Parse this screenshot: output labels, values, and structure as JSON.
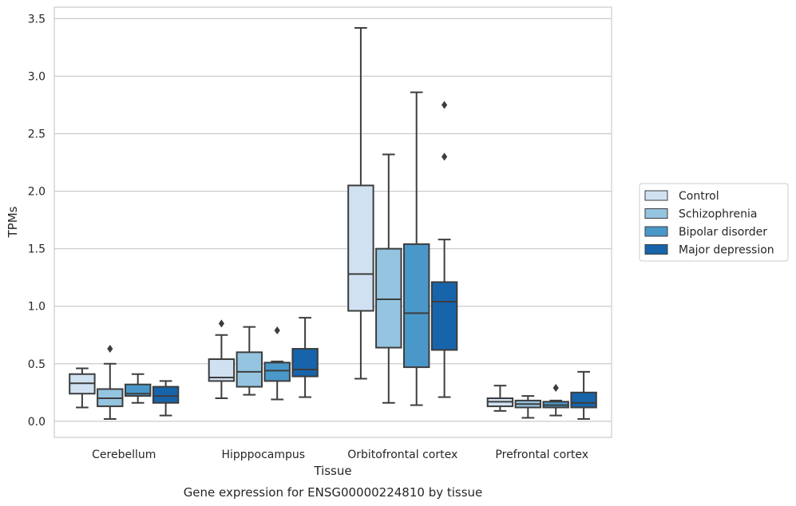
{
  "chart_data": {
    "type": "box",
    "caption": "Gene expression for ENSG00000224810 by tissue",
    "xlabel": "Tissue",
    "ylabel": "TPMs",
    "ylim": [
      -0.14,
      3.6
    ],
    "yticks": [
      0.0,
      0.5,
      1.0,
      1.5,
      2.0,
      2.5,
      3.0,
      3.5
    ],
    "ytick_labels": [
      "0.0",
      "0.5",
      "1.0",
      "1.5",
      "2.0",
      "2.5",
      "3.0",
      "3.5"
    ],
    "grid": "horizontal",
    "legend_position": "right",
    "categories": [
      "Cerebellum",
      "Hipppocampus",
      "Orbitofrontal cortex",
      "Prefrontal cortex"
    ],
    "series": [
      {
        "name": "Control",
        "color": "#d0e1f2",
        "boxes": [
          {
            "whislo": 0.12,
            "q1": 0.24,
            "med": 0.33,
            "q3": 0.41,
            "whishi": 0.46,
            "fliers": []
          },
          {
            "whislo": 0.2,
            "q1": 0.35,
            "med": 0.38,
            "q3": 0.54,
            "whishi": 0.75,
            "fliers": [
              0.85
            ]
          },
          {
            "whislo": 0.37,
            "q1": 0.96,
            "med": 1.28,
            "q3": 2.05,
            "whishi": 3.42,
            "fliers": []
          },
          {
            "whislo": 0.09,
            "q1": 0.13,
            "med": 0.17,
            "q3": 0.2,
            "whishi": 0.31,
            "fliers": []
          }
        ]
      },
      {
        "name": "Schizophrenia",
        "color": "#94c4df",
        "boxes": [
          {
            "whislo": 0.02,
            "q1": 0.13,
            "med": 0.2,
            "q3": 0.28,
            "whishi": 0.5,
            "fliers": [
              0.63
            ]
          },
          {
            "whislo": 0.23,
            "q1": 0.3,
            "med": 0.43,
            "q3": 0.6,
            "whishi": 0.82,
            "fliers": []
          },
          {
            "whislo": 0.16,
            "q1": 0.64,
            "med": 1.06,
            "q3": 1.5,
            "whishi": 2.32,
            "fliers": []
          },
          {
            "whislo": 0.03,
            "q1": 0.12,
            "med": 0.15,
            "q3": 0.18,
            "whishi": 0.22,
            "fliers": []
          }
        ]
      },
      {
        "name": "Bipolar disorder",
        "color": "#4a98c9",
        "boxes": [
          {
            "whislo": 0.16,
            "q1": 0.22,
            "med": 0.24,
            "q3": 0.32,
            "whishi": 0.41,
            "fliers": []
          },
          {
            "whislo": 0.19,
            "q1": 0.35,
            "med": 0.44,
            "q3": 0.51,
            "whishi": 0.52,
            "fliers": [
              0.79
            ]
          },
          {
            "whislo": 0.14,
            "q1": 0.47,
            "med": 0.94,
            "q3": 1.54,
            "whishi": 2.86,
            "fliers": []
          },
          {
            "whislo": 0.05,
            "q1": 0.12,
            "med": 0.14,
            "q3": 0.17,
            "whishi": 0.18,
            "fliers": [
              0.29
            ]
          }
        ]
      },
      {
        "name": "Major depression",
        "color": "#1764ab",
        "boxes": [
          {
            "whislo": 0.05,
            "q1": 0.16,
            "med": 0.22,
            "q3": 0.3,
            "whishi": 0.35,
            "fliers": []
          },
          {
            "whislo": 0.21,
            "q1": 0.39,
            "med": 0.45,
            "q3": 0.63,
            "whishi": 0.9,
            "fliers": []
          },
          {
            "whislo": 0.21,
            "q1": 0.62,
            "med": 1.04,
            "q3": 1.21,
            "whishi": 1.58,
            "fliers": [
              2.3,
              2.75
            ]
          },
          {
            "whislo": 0.02,
            "q1": 0.12,
            "med": 0.16,
            "q3": 0.25,
            "whishi": 0.43,
            "fliers": []
          }
        ]
      }
    ]
  }
}
